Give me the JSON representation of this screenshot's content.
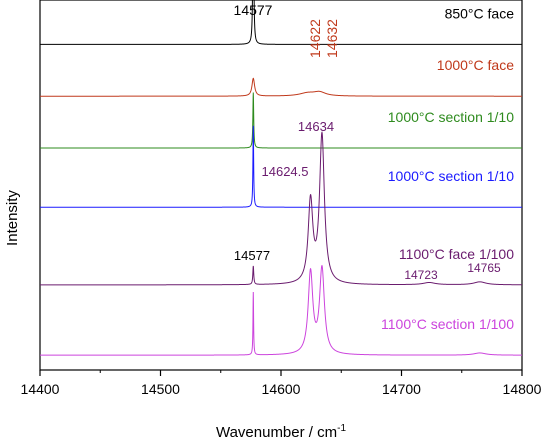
{
  "chart_data": {
    "type": "line",
    "title": "",
    "xlabel": "Wavenumber / cm",
    "xlabel_superscript": "-1",
    "ylabel": "Intensity",
    "xlim": [
      14400,
      14800
    ],
    "xticks": [
      14400,
      14500,
      14600,
      14700,
      14800
    ],
    "y_ticks_shown": false,
    "grid": false,
    "legend": "none",
    "series": [
      {
        "name": "850°C face",
        "color": "#000000",
        "baseline": 0.88,
        "peaks": [
          {
            "x": 14577,
            "height": 0.62,
            "width": 0.35
          }
        ]
      },
      {
        "name": "1000°C face",
        "color": "#c0391b",
        "baseline": 0.74,
        "peaks": [
          {
            "x": 14577,
            "height": 0.048,
            "width": 1.3
          },
          {
            "x": 14622,
            "height": 0.008,
            "width": 8
          },
          {
            "x": 14632,
            "height": 0.01,
            "width": 6
          }
        ]
      },
      {
        "name": "1000°C section 1/10",
        "color": "#2e8b1e",
        "baseline": 0.6,
        "peaks": [
          {
            "x": 14577,
            "height": 0.15,
            "width": 0.4
          }
        ]
      },
      {
        "name": "1000°C section 1/10",
        "color": "#1a1aff",
        "baseline": 0.44,
        "peaks": [
          {
            "x": 14577,
            "height": 0.22,
            "width": 0.35
          }
        ]
      },
      {
        "name": "1100°C face 1/100",
        "color": "#6a1b6e",
        "baseline": 0.23,
        "peaks": [
          {
            "x": 14577,
            "height": 0.05,
            "width": 0.45
          },
          {
            "x": 14624.5,
            "height": 0.22,
            "width": 2.3
          },
          {
            "x": 14634,
            "height": 0.4,
            "width": 2.4
          },
          {
            "x": 14723,
            "height": 0.006,
            "width": 6
          },
          {
            "x": 14765,
            "height": 0.008,
            "width": 6
          }
        ]
      },
      {
        "name": "1100°C section 1/100",
        "color": "#cc44dd",
        "baseline": 0.04,
        "peaks": [
          {
            "x": 14577,
            "height": 0.17,
            "width": 0.3
          },
          {
            "x": 14624.5,
            "height": 0.22,
            "width": 2.3
          },
          {
            "x": 14634,
            "height": 0.23,
            "width": 2.4
          },
          {
            "x": 14765,
            "height": 0.006,
            "width": 6
          }
        ]
      }
    ],
    "annotations": [
      {
        "text": "14577",
        "x": 14577,
        "color": "#000000"
      },
      {
        "text": "14622",
        "x": 14622,
        "color": "#c0391b",
        "rotated": true
      },
      {
        "text": "14632",
        "x": 14632,
        "color": "#c0391b",
        "rotated": true
      },
      {
        "text": "14634",
        "x": 14634,
        "color": "#6a1b6e"
      },
      {
        "text": "14624.5",
        "x": 14624.5,
        "color": "#6a1b6e"
      },
      {
        "text": "14577",
        "x": 14577,
        "color": "#000000"
      },
      {
        "text": "14723",
        "x": 14723,
        "color": "#6a1b6e"
      },
      {
        "text": "14765",
        "x": 14765,
        "color": "#6a1b6e"
      }
    ]
  }
}
